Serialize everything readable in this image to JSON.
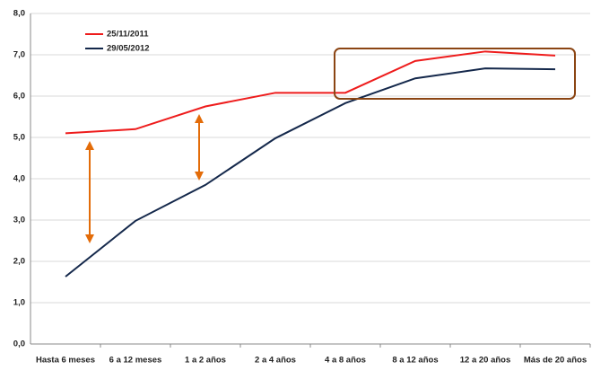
{
  "chart_data": {
    "type": "line",
    "categories": [
      "Hasta 6 meses",
      "6 a 12 meses",
      "1 a 2 años",
      "2 a 4 años",
      "4 a 8 años",
      "8 a 12 años",
      "12 a 20 años",
      "Más de 20 años"
    ],
    "series": [
      {
        "name": "25/11/2011",
        "color": "#ee1c1c",
        "values": [
          5.1,
          5.2,
          5.75,
          6.08,
          6.08,
          6.85,
          7.08,
          6.98
        ]
      },
      {
        "name": "29/05/2012",
        "color": "#14284b",
        "values": [
          1.63,
          2.98,
          3.85,
          4.98,
          5.83,
          6.43,
          6.67,
          6.65
        ]
      }
    ],
    "ylim": [
      0,
      8
    ],
    "yticks": [
      {
        "value": 0,
        "label": "0,0"
      },
      {
        "value": 1,
        "label": "1,0"
      },
      {
        "value": 2,
        "label": "2,0"
      },
      {
        "value": 3,
        "label": "3,0"
      },
      {
        "value": 4,
        "label": "4,0"
      },
      {
        "value": 5,
        "label": "5,0"
      },
      {
        "value": 6,
        "label": "6,0"
      },
      {
        "value": 7,
        "label": "7,0"
      },
      {
        "value": 8,
        "label": "8,0"
      }
    ],
    "grid": true
  }
}
